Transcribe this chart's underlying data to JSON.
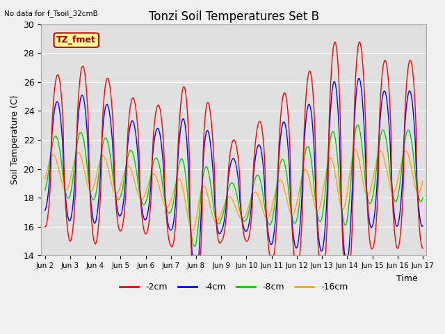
{
  "title": "Tonzi Soil Temperatures Set B",
  "top_left_text": "No data for f_Tsoil_32cmB",
  "legend_box_label": "TZ_fmet",
  "ylabel": "Soil Temperature (C)",
  "xlabel": "Time",
  "ylim": [
    14,
    30
  ],
  "xlim_days": [
    2,
    17
  ],
  "tick_labels": [
    "Jun 2",
    "Jun 3",
    "Jun 4",
    "Jun 5",
    "Jun 6",
    "Jun 7",
    "Jun 8",
    "Jun 9",
    "Jun 10",
    "Jun 11",
    "Jun 12",
    "Jun 13",
    "Jun 14",
    "Jun 15",
    "Jun 16",
    "Jun 17"
  ],
  "tick_positions": [
    2,
    3,
    4,
    5,
    6,
    7,
    8,
    9,
    10,
    11,
    12,
    13,
    14,
    15,
    16,
    17
  ],
  "colors": {
    "m2cm": "#ff0000",
    "m4cm": "#0000ff",
    "m8cm": "#00cc00",
    "m16cm": "#ffa500"
  },
  "legend_entries": [
    "-2cm",
    "-4cm",
    "-8cm",
    "-16cm"
  ],
  "background_color": "#e0e0e0",
  "fig_background": "#f0f0f0",
  "legend_box_color": "#ffff99",
  "legend_box_edge": "#cc0000",
  "grid_color": "#ffffff"
}
